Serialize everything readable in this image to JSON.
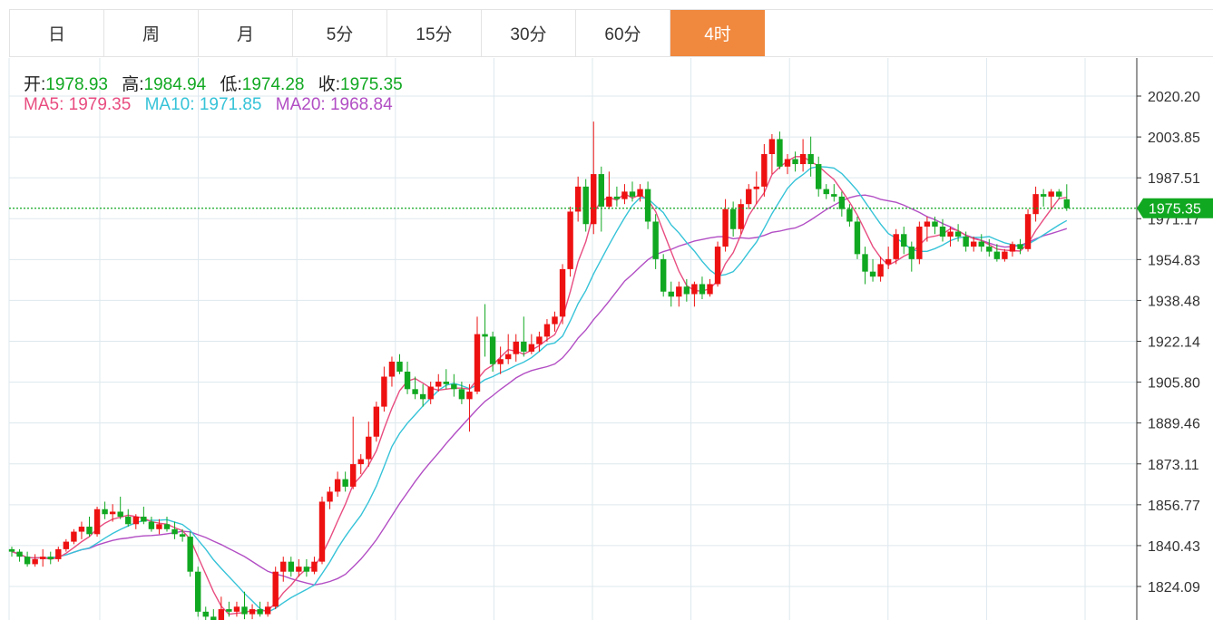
{
  "tabs": [
    {
      "label": "日"
    },
    {
      "label": "周"
    },
    {
      "label": "月"
    },
    {
      "label": "5分"
    },
    {
      "label": "15分"
    },
    {
      "label": "30分"
    },
    {
      "label": "60分"
    },
    {
      "label": "4时",
      "active": true
    }
  ],
  "colors": {
    "accent": "#f0883e",
    "up": "#ee1111",
    "down": "#11a821",
    "ma5": "#e84d80",
    "ma10": "#36c3d8",
    "ma20": "#b24ec4",
    "grid": "#dde8ee"
  },
  "ohlc": {
    "open_label": "开:",
    "open": "1978.93",
    "high_label": "高:",
    "high": "1984.94",
    "low_label": "低:",
    "low": "1974.28",
    "close_label": "收:",
    "close": "1975.35"
  },
  "ma": {
    "ma5_label": "MA5:",
    "ma5": "1979.35",
    "ma10_label": "MA10:",
    "ma10": "1971.85",
    "ma20_label": "MA20:",
    "ma20": "1968.84"
  },
  "chart_data": {
    "type": "candlestick",
    "y_ticks": [
      "2020.20",
      "2003.85",
      "1987.51",
      "1971.17",
      "1954.83",
      "1938.48",
      "1922.14",
      "1905.80",
      "1889.46",
      "1873.11",
      "1856.77",
      "1840.43",
      "1824.09"
    ],
    "last_price": "1975.35",
    "grid": true,
    "candles": [
      [
        1839,
        1840,
        1836,
        1838
      ],
      [
        1838,
        1839,
        1834,
        1836
      ],
      [
        1836,
        1838,
        1832,
        1833
      ],
      [
        1833,
        1837,
        1832,
        1835
      ],
      [
        1835,
        1839,
        1832,
        1836
      ],
      [
        1836,
        1838,
        1833,
        1835
      ],
      [
        1835,
        1840,
        1834,
        1839
      ],
      [
        1839,
        1843,
        1838,
        1842
      ],
      [
        1842,
        1847,
        1841,
        1846
      ],
      [
        1846,
        1850,
        1843,
        1848
      ],
      [
        1848,
        1852,
        1844,
        1845
      ],
      [
        1845,
        1856,
        1844,
        1855
      ],
      [
        1855,
        1858,
        1851,
        1853
      ],
      [
        1853,
        1857,
        1850,
        1854
      ],
      [
        1854,
        1860,
        1851,
        1852
      ],
      [
        1852,
        1855,
        1848,
        1849
      ],
      [
        1849,
        1853,
        1847,
        1852
      ],
      [
        1852,
        1856,
        1849,
        1850
      ],
      [
        1850,
        1852,
        1846,
        1847
      ],
      [
        1847,
        1851,
        1845,
        1849
      ],
      [
        1849,
        1852,
        1846,
        1847
      ],
      [
        1847,
        1850,
        1843,
        1845
      ],
      [
        1845,
        1847,
        1842,
        1844
      ],
      [
        1844,
        1846,
        1828,
        1830
      ],
      [
        1830,
        1832,
        1812,
        1814
      ],
      [
        1814,
        1816,
        1810,
        1812
      ],
      [
        1812,
        1815,
        1809,
        1810
      ],
      [
        1810,
        1820,
        1808,
        1815
      ],
      [
        1815,
        1818,
        1812,
        1814
      ],
      [
        1814,
        1818,
        1812,
        1816
      ],
      [
        1816,
        1822,
        1811,
        1813
      ],
      [
        1813,
        1817,
        1811,
        1815
      ],
      [
        1815,
        1818,
        1812,
        1813
      ],
      [
        1813,
        1818,
        1812,
        1816
      ],
      [
        1816,
        1832,
        1815,
        1830
      ],
      [
        1830,
        1836,
        1826,
        1834
      ],
      [
        1834,
        1836,
        1828,
        1830
      ],
      [
        1830,
        1835,
        1828,
        1832
      ],
      [
        1832,
        1835,
        1828,
        1830
      ],
      [
        1830,
        1836,
        1829,
        1834
      ],
      [
        1834,
        1860,
        1833,
        1858
      ],
      [
        1858,
        1864,
        1855,
        1862
      ],
      [
        1862,
        1870,
        1860,
        1867
      ],
      [
        1867,
        1870,
        1862,
        1864
      ],
      [
        1864,
        1892,
        1863,
        1873
      ],
      [
        1873,
        1877,
        1869,
        1875
      ],
      [
        1875,
        1890,
        1872,
        1884
      ],
      [
        1884,
        1898,
        1882,
        1896
      ],
      [
        1896,
        1912,
        1894,
        1908
      ],
      [
        1908,
        1916,
        1904,
        1914
      ],
      [
        1914,
        1917,
        1909,
        1910
      ],
      [
        1910,
        1914,
        1901,
        1903
      ],
      [
        1903,
        1908,
        1899,
        1901
      ],
      [
        1901,
        1905,
        1896,
        1899
      ],
      [
        1899,
        1906,
        1897,
        1904
      ],
      [
        1904,
        1909,
        1902,
        1906
      ],
      [
        1906,
        1911,
        1903,
        1905
      ],
      [
        1905,
        1909,
        1900,
        1903
      ],
      [
        1903,
        1906,
        1897,
        1899
      ],
      [
        1899,
        1905,
        1886,
        1902
      ],
      [
        1902,
        1932,
        1901,
        1925
      ],
      [
        1925,
        1937,
        1916,
        1924
      ],
      [
        1924,
        1926,
        1910,
        1913
      ],
      [
        1913,
        1920,
        1909,
        1915
      ],
      [
        1915,
        1925,
        1913,
        1917
      ],
      [
        1917,
        1925,
        1914,
        1922
      ],
      [
        1922,
        1932,
        1916,
        1918
      ],
      [
        1918,
        1925,
        1917,
        1921
      ],
      [
        1921,
        1926,
        1918,
        1924
      ],
      [
        1924,
        1931,
        1922,
        1929
      ],
      [
        1929,
        1934,
        1926,
        1932
      ],
      [
        1932,
        1953,
        1929,
        1951
      ],
      [
        1951,
        1976,
        1948,
        1974
      ],
      [
        1974,
        1988,
        1970,
        1984
      ],
      [
        1984,
        1987,
        1966,
        1969
      ],
      [
        1969,
        2010,
        1965,
        1989
      ],
      [
        1989,
        1992,
        1966,
        1976
      ],
      [
        1976,
        1990,
        1975,
        1980
      ],
      [
        1980,
        1984,
        1976,
        1979
      ],
      [
        1979,
        1985,
        1977,
        1982
      ],
      [
        1982,
        1986,
        1978,
        1980
      ],
      [
        1980,
        1985,
        1978,
        1983
      ],
      [
        1983,
        1986,
        1967,
        1970
      ],
      [
        1970,
        1973,
        1951,
        1955
      ],
      [
        1955,
        1957,
        1940,
        1942
      ],
      [
        1942,
        1946,
        1936,
        1940
      ],
      [
        1940,
        1946,
        1936,
        1944
      ],
      [
        1944,
        1947,
        1938,
        1941
      ],
      [
        1941,
        1946,
        1936,
        1945
      ],
      [
        1945,
        1948,
        1939,
        1941
      ],
      [
        1941,
        1947,
        1940,
        1945
      ],
      [
        1945,
        1962,
        1944,
        1960
      ],
      [
        1960,
        1979,
        1958,
        1975
      ],
      [
        1975,
        1978,
        1964,
        1967
      ],
      [
        1967,
        1979,
        1965,
        1977
      ],
      [
        1977,
        1985,
        1975,
        1983
      ],
      [
        1983,
        1990,
        1977,
        1984
      ],
      [
        1984,
        2001,
        1980,
        1997
      ],
      [
        1997,
        2005,
        1989,
        2003
      ],
      [
        2003,
        2006,
        1991,
        1992
      ],
      [
        1992,
        1997,
        1989,
        1995
      ],
      [
        1995,
        1998,
        1990,
        1993
      ],
      [
        1993,
        2003,
        1990,
        1997
      ],
      [
        1997,
        2004,
        1988,
        1993
      ],
      [
        1993,
        1996,
        1980,
        1983
      ],
      [
        1983,
        1985,
        1979,
        1981
      ],
      [
        1981,
        1985,
        1978,
        1980
      ],
      [
        1980,
        1982,
        1972,
        1975
      ],
      [
        1975,
        1977,
        1968,
        1970
      ],
      [
        1970,
        1972,
        1955,
        1957
      ],
      [
        1957,
        1960,
        1945,
        1950
      ],
      [
        1950,
        1955,
        1946,
        1948
      ],
      [
        1948,
        1956,
        1946,
        1953
      ],
      [
        1953,
        1960,
        1951,
        1955
      ],
      [
        1955,
        1967,
        1953,
        1965
      ],
      [
        1965,
        1968,
        1957,
        1960
      ],
      [
        1960,
        1962,
        1950,
        1955
      ],
      [
        1955,
        1970,
        1953,
        1968
      ],
      [
        1968,
        1972,
        1962,
        1970
      ],
      [
        1970,
        1972,
        1965,
        1968
      ],
      [
        1968,
        1971,
        1962,
        1964
      ],
      [
        1964,
        1968,
        1960,
        1966
      ],
      [
        1966,
        1969,
        1962,
        1964
      ],
      [
        1964,
        1966,
        1958,
        1960
      ],
      [
        1960,
        1964,
        1958,
        1962
      ],
      [
        1962,
        1965,
        1958,
        1960
      ],
      [
        1960,
        1963,
        1956,
        1958
      ],
      [
        1958,
        1961,
        1954,
        1955
      ],
      [
        1955,
        1959,
        1954,
        1958
      ],
      [
        1958,
        1962,
        1956,
        1961
      ],
      [
        1961,
        1963,
        1957,
        1959
      ],
      [
        1959,
        1975,
        1958,
        1973
      ],
      [
        1973,
        1984,
        1970,
        1981
      ],
      [
        1981,
        1983,
        1976,
        1980
      ],
      [
        1980,
        1983,
        1975,
        1982
      ],
      [
        1982,
        1983,
        1979,
        1980
      ],
      [
        1978.93,
        1984.94,
        1974.28,
        1975.35
      ]
    ]
  }
}
